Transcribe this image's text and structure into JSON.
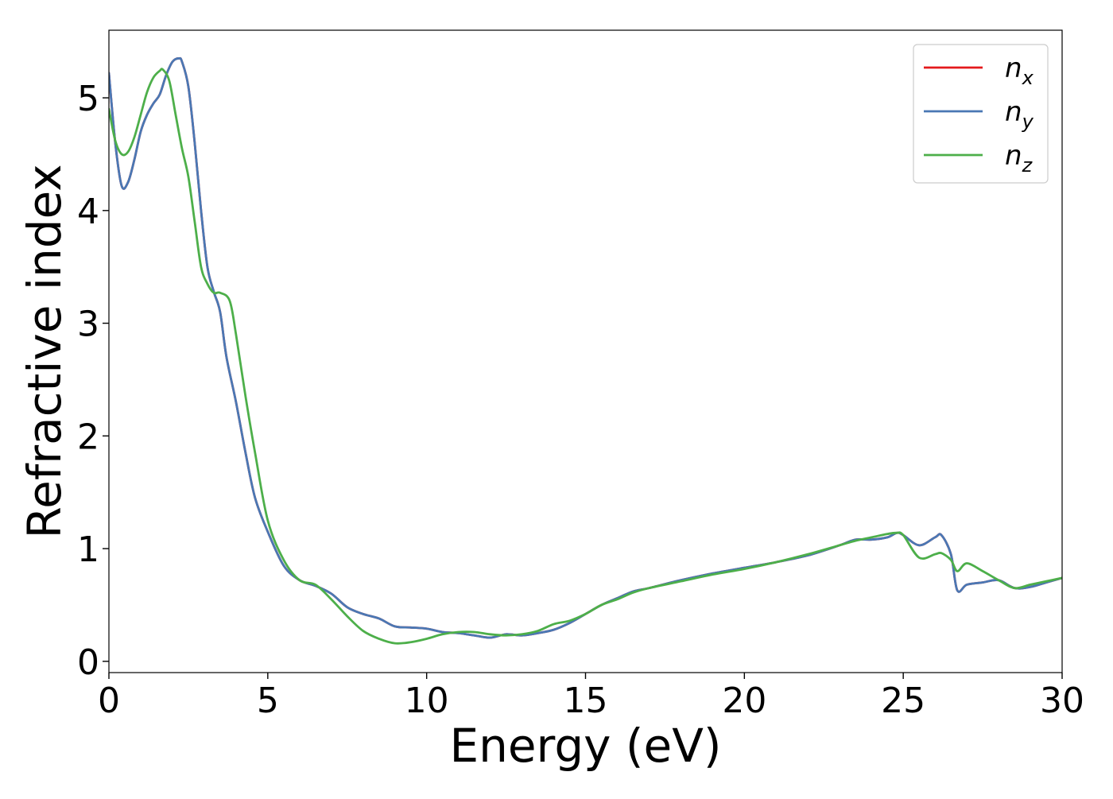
{
  "chart_data": {
    "type": "line",
    "title": "",
    "xlabel": "Energy (eV)",
    "ylabel": "Refractive index",
    "xlim": [
      0,
      30
    ],
    "ylim": [
      -0.1,
      5.6
    ],
    "xticks": [
      0,
      5,
      10,
      15,
      20,
      25,
      30
    ],
    "yticks": [
      0,
      1,
      2,
      3,
      4,
      5
    ],
    "grid": false,
    "legend_position": "top-right",
    "series": [
      {
        "key": "nx",
        "name": "n",
        "subscript": "x",
        "color": "#e41a1c",
        "x": [
          0,
          0.2,
          0.4,
          0.6,
          0.8,
          1.0,
          1.2,
          1.4,
          1.6,
          1.8,
          2.0,
          2.2,
          2.3,
          2.5,
          2.7,
          2.9,
          3.1,
          3.3,
          3.5,
          3.7,
          4.0,
          4.3,
          4.6,
          5.0,
          5.5,
          6.0,
          6.5,
          7.0,
          7.5,
          8.0,
          8.5,
          9.0,
          9.5,
          10.0,
          10.5,
          11.0,
          11.5,
          12.0,
          12.5,
          13.0,
          13.5,
          14.0,
          14.5,
          15.0,
          15.5,
          16.0,
          16.5,
          17.0,
          18.0,
          19.0,
          20.0,
          21.0,
          22.0,
          23.0,
          23.5,
          24.0,
          24.5,
          24.8,
          25.0,
          25.5,
          26.0,
          26.2,
          26.5,
          26.7,
          27.0,
          27.5,
          28.0,
          28.5,
          29.0,
          29.5,
          30.0
        ],
        "y": [
          5.22,
          4.6,
          4.22,
          4.25,
          4.45,
          4.7,
          4.85,
          4.95,
          5.03,
          5.2,
          5.32,
          5.35,
          5.32,
          5.1,
          4.6,
          4.0,
          3.5,
          3.28,
          3.1,
          2.7,
          2.3,
          1.85,
          1.45,
          1.15,
          0.85,
          0.72,
          0.67,
          0.6,
          0.48,
          0.42,
          0.38,
          0.31,
          0.3,
          0.29,
          0.26,
          0.25,
          0.23,
          0.21,
          0.24,
          0.23,
          0.25,
          0.28,
          0.34,
          0.42,
          0.5,
          0.56,
          0.62,
          0.65,
          0.72,
          0.78,
          0.83,
          0.88,
          0.94,
          1.03,
          1.08,
          1.08,
          1.1,
          1.14,
          1.12,
          1.03,
          1.1,
          1.12,
          0.95,
          0.63,
          0.68,
          0.7,
          0.72,
          0.65,
          0.66,
          0.7,
          0.74
        ]
      },
      {
        "key": "ny",
        "name": "n",
        "subscript": "y",
        "color": "#4a78b4",
        "x": [
          0,
          0.2,
          0.4,
          0.6,
          0.8,
          1.0,
          1.2,
          1.4,
          1.6,
          1.8,
          2.0,
          2.2,
          2.3,
          2.5,
          2.7,
          2.9,
          3.1,
          3.3,
          3.5,
          3.7,
          4.0,
          4.3,
          4.6,
          5.0,
          5.5,
          6.0,
          6.5,
          7.0,
          7.5,
          8.0,
          8.5,
          9.0,
          9.5,
          10.0,
          10.5,
          11.0,
          11.5,
          12.0,
          12.5,
          13.0,
          13.5,
          14.0,
          14.5,
          15.0,
          15.5,
          16.0,
          16.5,
          17.0,
          18.0,
          19.0,
          20.0,
          21.0,
          22.0,
          23.0,
          23.5,
          24.0,
          24.5,
          24.8,
          25.0,
          25.5,
          26.0,
          26.2,
          26.5,
          26.7,
          27.0,
          27.5,
          28.0,
          28.5,
          29.0,
          29.5,
          30.0
        ],
        "y": [
          5.22,
          4.6,
          4.22,
          4.25,
          4.45,
          4.7,
          4.85,
          4.95,
          5.03,
          5.2,
          5.32,
          5.35,
          5.32,
          5.1,
          4.6,
          4.0,
          3.5,
          3.28,
          3.1,
          2.7,
          2.3,
          1.85,
          1.45,
          1.15,
          0.85,
          0.72,
          0.67,
          0.6,
          0.48,
          0.42,
          0.38,
          0.31,
          0.3,
          0.29,
          0.26,
          0.25,
          0.23,
          0.21,
          0.24,
          0.23,
          0.25,
          0.28,
          0.34,
          0.42,
          0.5,
          0.56,
          0.62,
          0.65,
          0.72,
          0.78,
          0.83,
          0.88,
          0.94,
          1.03,
          1.08,
          1.08,
          1.1,
          1.14,
          1.12,
          1.03,
          1.1,
          1.12,
          0.95,
          0.63,
          0.68,
          0.7,
          0.72,
          0.65,
          0.66,
          0.7,
          0.74
        ]
      },
      {
        "key": "nz",
        "name": "n",
        "subscript": "z",
        "color": "#4daf4a",
        "x": [
          0,
          0.2,
          0.4,
          0.6,
          0.8,
          1.0,
          1.2,
          1.4,
          1.6,
          1.7,
          1.9,
          2.1,
          2.3,
          2.5,
          2.7,
          2.9,
          3.1,
          3.3,
          3.5,
          3.8,
          4.0,
          4.3,
          4.6,
          5.0,
          5.5,
          6.0,
          6.5,
          7.0,
          7.5,
          8.0,
          8.5,
          9.0,
          9.5,
          10.0,
          10.5,
          11.0,
          11.5,
          12.0,
          12.5,
          13.0,
          13.5,
          14.0,
          14.5,
          15.0,
          15.5,
          16.0,
          16.5,
          17.0,
          18.0,
          19.0,
          20.0,
          21.0,
          22.0,
          23.0,
          23.5,
          24.0,
          24.5,
          24.8,
          25.0,
          25.5,
          26.0,
          26.2,
          26.5,
          26.7,
          27.0,
          27.5,
          28.0,
          28.5,
          29.0,
          29.5,
          30.0
        ],
        "y": [
          4.9,
          4.62,
          4.5,
          4.52,
          4.65,
          4.85,
          5.05,
          5.18,
          5.24,
          5.25,
          5.15,
          4.85,
          4.55,
          4.3,
          3.9,
          3.5,
          3.35,
          3.27,
          3.27,
          3.2,
          2.9,
          2.35,
          1.85,
          1.25,
          0.9,
          0.72,
          0.68,
          0.55,
          0.4,
          0.27,
          0.2,
          0.16,
          0.17,
          0.2,
          0.24,
          0.26,
          0.26,
          0.24,
          0.23,
          0.24,
          0.27,
          0.33,
          0.36,
          0.42,
          0.5,
          0.55,
          0.61,
          0.65,
          0.71,
          0.77,
          0.82,
          0.88,
          0.95,
          1.03,
          1.07,
          1.1,
          1.13,
          1.14,
          1.12,
          0.92,
          0.95,
          0.96,
          0.9,
          0.8,
          0.87,
          0.8,
          0.72,
          0.65,
          0.68,
          0.71,
          0.74
        ]
      }
    ]
  }
}
